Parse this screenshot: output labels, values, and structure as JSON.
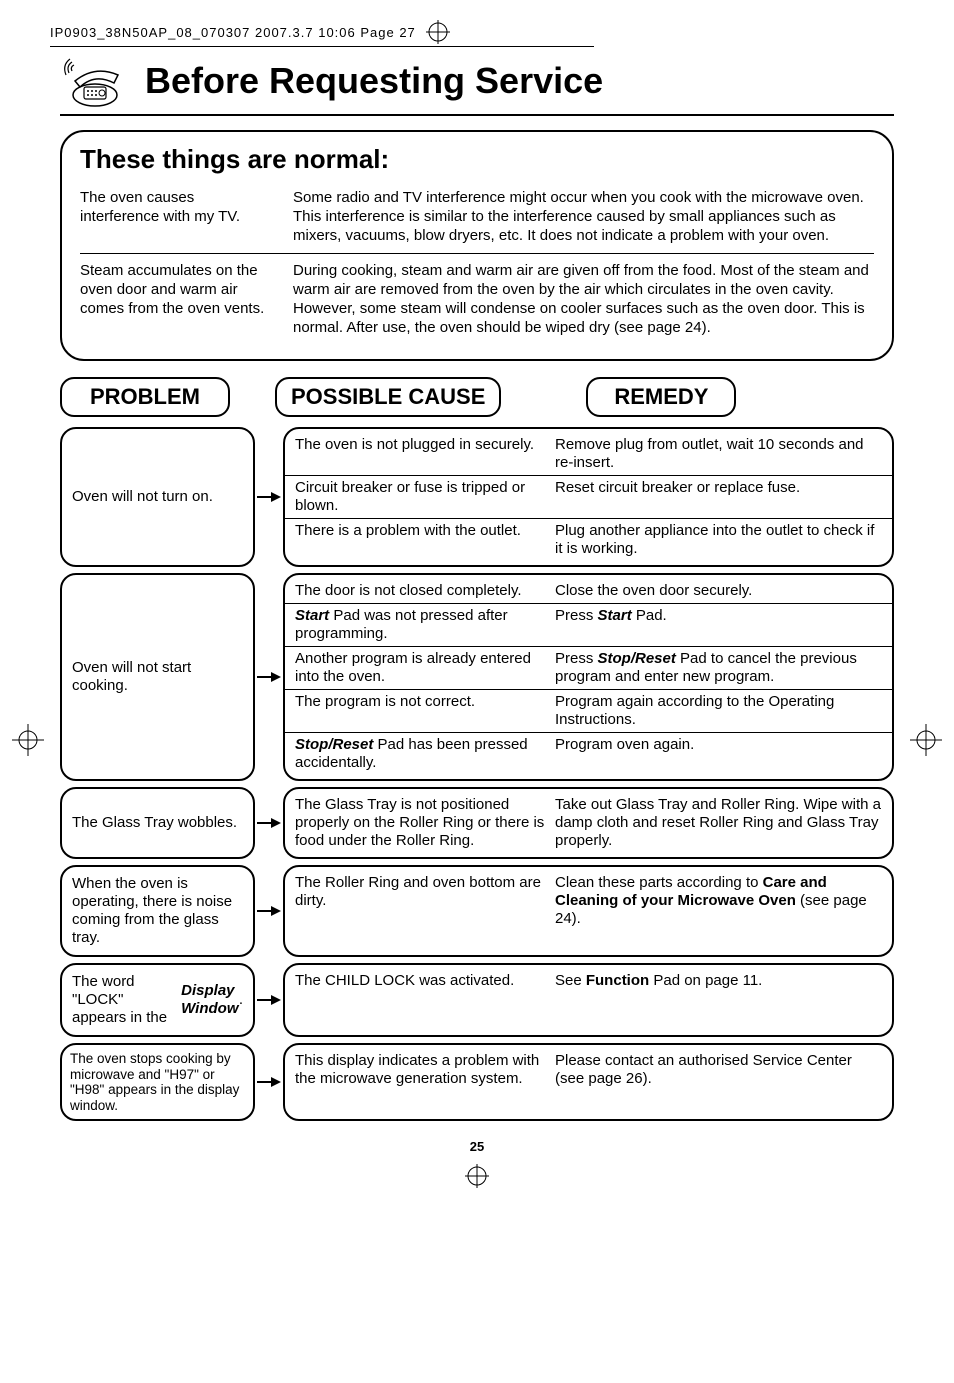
{
  "crop_header": "IP0903_38N50AP_08_070307  2007.3.7  10:06  Page 27",
  "page_title": "Before Requesting Service",
  "normal_section": {
    "title": "These things are normal:",
    "rows": [
      {
        "left": "The oven causes interference with my TV.",
        "right": "Some radio and TV interference might occur when you cook with the microwave oven. This interference is similar to the interference caused by small appliances such as mixers, vacuums, blow dryers, etc. It does not indicate a problem with your oven."
      },
      {
        "left": "Steam accumulates on the oven door and warm air comes from the oven vents.",
        "right": "During cooking, steam and warm air are given off from the food. Most of the steam and warm air are removed from the oven by the air which circulates in the oven cavity. However, some steam will condense on cooler surfaces such as the oven door. This is normal. After use, the oven should be wiped dry (see page 24)."
      }
    ]
  },
  "headers": {
    "problem": "PROBLEM",
    "cause": "POSSIBLE CAUSE",
    "remedy": "REMEDY"
  },
  "troubles": [
    {
      "problem": "Oven will not turn on.",
      "rows": [
        {
          "cause": "The oven is not plugged in securely.",
          "remedy": "Remove plug from outlet, wait 10 seconds and re-insert."
        },
        {
          "cause": "Circuit breaker or fuse is tripped or blown.",
          "remedy": "Reset circuit breaker or replace fuse."
        },
        {
          "cause": "There is a problem with the outlet.",
          "remedy": "Plug another appliance into the outlet to check if it is working."
        }
      ]
    },
    {
      "problem": "Oven will not start cooking.",
      "rows": [
        {
          "cause": "The door is not closed completely.",
          "remedy": "Close the oven door securely."
        },
        {
          "cause_html": "<span class='bi'>Start</span> Pad was not pressed after programming.",
          "remedy_html": "Press <span class='bi'>Start</span> Pad."
        },
        {
          "cause": "Another program is already entered into the oven.",
          "remedy_html": "Press <span class='bi'>Stop/Reset</span> Pad to cancel the previous program and enter new program."
        },
        {
          "cause": "The program is not correct.",
          "remedy": "Program again according to the Operating Instructions."
        },
        {
          "cause_html": "<span class='bi'>Stop/Reset</span> Pad has been pressed accidentally.",
          "remedy": "Program oven again."
        }
      ]
    },
    {
      "problem": "The Glass Tray wobbles.",
      "rows": [
        {
          "cause": "The Glass Tray is not positioned properly on the Roller Ring or there is food under the Roller Ring.",
          "remedy": "Take out Glass Tray and Roller Ring. Wipe with a damp cloth and reset Roller Ring and Glass Tray properly."
        }
      ]
    },
    {
      "problem": "When the oven is operating, there is noise coming from the glass tray.",
      "rows": [
        {
          "cause": "The Roller Ring and oven bottom are dirty.",
          "remedy_html": "Clean these parts according to <span class='b'>Care and Cleaning of your Microwave Oven</span> (see page 24)."
        }
      ]
    },
    {
      "problem_html": "The word \"LOCK\" appears in the <span class='bi'>Display Window</span>.",
      "rows": [
        {
          "cause": "The CHILD LOCK was activated.",
          "remedy_html": "See <span class='b'>Function</span> Pad on page 11."
        }
      ]
    },
    {
      "problem": "The oven stops cooking by microwave and \"H97\" or \"H98\" appears in the display window.",
      "small": true,
      "rows": [
        {
          "cause": "This display indicates a problem with the microwave generation system.",
          "remedy": "Please contact an authorised Service Center (see page 26)."
        }
      ]
    }
  ],
  "page_number": "25"
}
